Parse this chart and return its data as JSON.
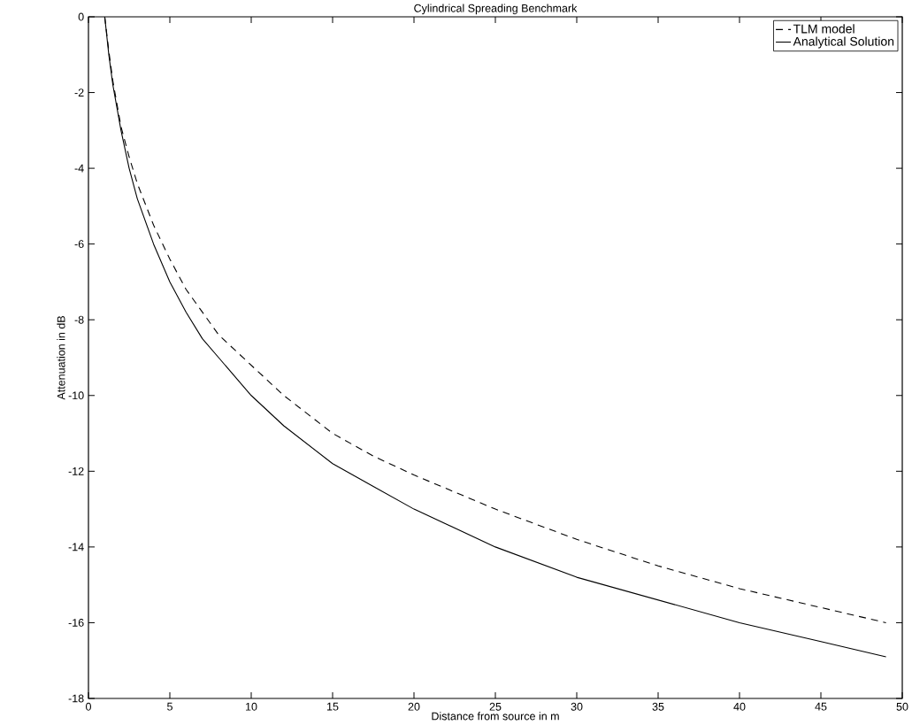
{
  "chart_data": {
    "type": "line",
    "title": "Cylindrical Spreading Benchmark",
    "xlabel": "Distance from source in m",
    "ylabel": "Attenuation in dB",
    "xlim": [
      0,
      50
    ],
    "ylim": [
      -18,
      0
    ],
    "xticks": [
      0,
      5,
      10,
      15,
      20,
      25,
      30,
      35,
      40,
      45,
      50
    ],
    "yticks": [
      -18,
      -16,
      -14,
      -12,
      -10,
      -8,
      -6,
      -4,
      -2,
      0
    ],
    "grid": false,
    "legend": "top right",
    "marker": "none",
    "x": [
      1,
      1.25,
      1.5,
      2,
      2.5,
      3,
      4,
      5,
      6,
      7,
      8,
      10,
      12,
      15,
      17.5,
      20,
      25,
      30,
      35,
      40,
      45,
      49
    ],
    "series": [
      {
        "name": "TLM model",
        "color": "#000000",
        "line_style": "dashed",
        "values": [
          0,
          -0.9,
          -1.7,
          -2.9,
          -3.7,
          -4.4,
          -5.5,
          -6.4,
          -7.2,
          -7.8,
          -8.4,
          -9.2,
          -10.0,
          -11.0,
          -11.6,
          -12.1,
          -13.0,
          -13.8,
          -14.5,
          -15.1,
          -15.6,
          -16.0
        ]
      },
      {
        "name": "Analytical Solution",
        "color": "#000000",
        "line_style": "solid",
        "values": [
          0,
          -1.0,
          -1.8,
          -3.0,
          -4.0,
          -4.8,
          -6.0,
          -7.0,
          -7.8,
          -8.5,
          -9.0,
          -10.0,
          -10.8,
          -11.8,
          -12.4,
          -13.0,
          -14.0,
          -14.8,
          -15.4,
          -16.0,
          -16.5,
          -16.9
        ]
      }
    ]
  }
}
